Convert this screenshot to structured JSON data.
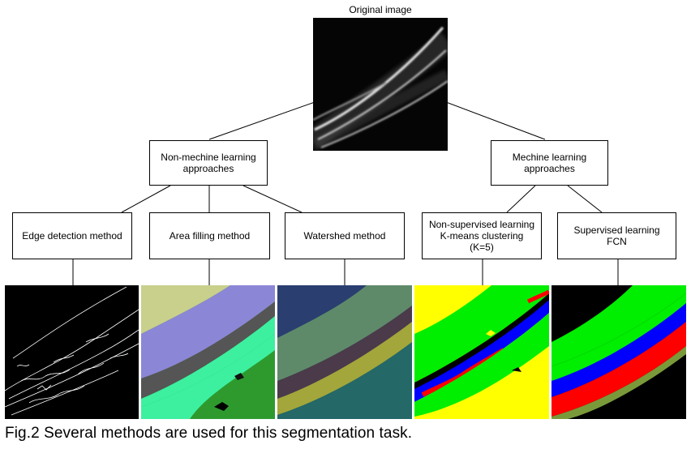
{
  "root": {
    "label": "Original image"
  },
  "groups": [
    {
      "label": "Non-mechine learning\napproaches"
    },
    {
      "label": "Mechine learning\napproaches"
    }
  ],
  "methods": [
    {
      "label": "Edge detection method"
    },
    {
      "label": "Area filling method"
    },
    {
      "label": "Watershed method"
    },
    {
      "label": "Non-supervised learning\nK-means clustering\n(K=5)"
    },
    {
      "label": "Supervised learning\nFCN"
    }
  ],
  "caption": "Fig.2   Several methods are used for this segmentation task.",
  "colors": {
    "kmeans": [
      "#ffff00",
      "#00ee00",
      "#0000ff",
      "#ff0000",
      "#000000"
    ],
    "fcn": [
      "#000000",
      "#00ee00",
      "#0000ff",
      "#ff0000",
      "#7a9a3a"
    ]
  }
}
